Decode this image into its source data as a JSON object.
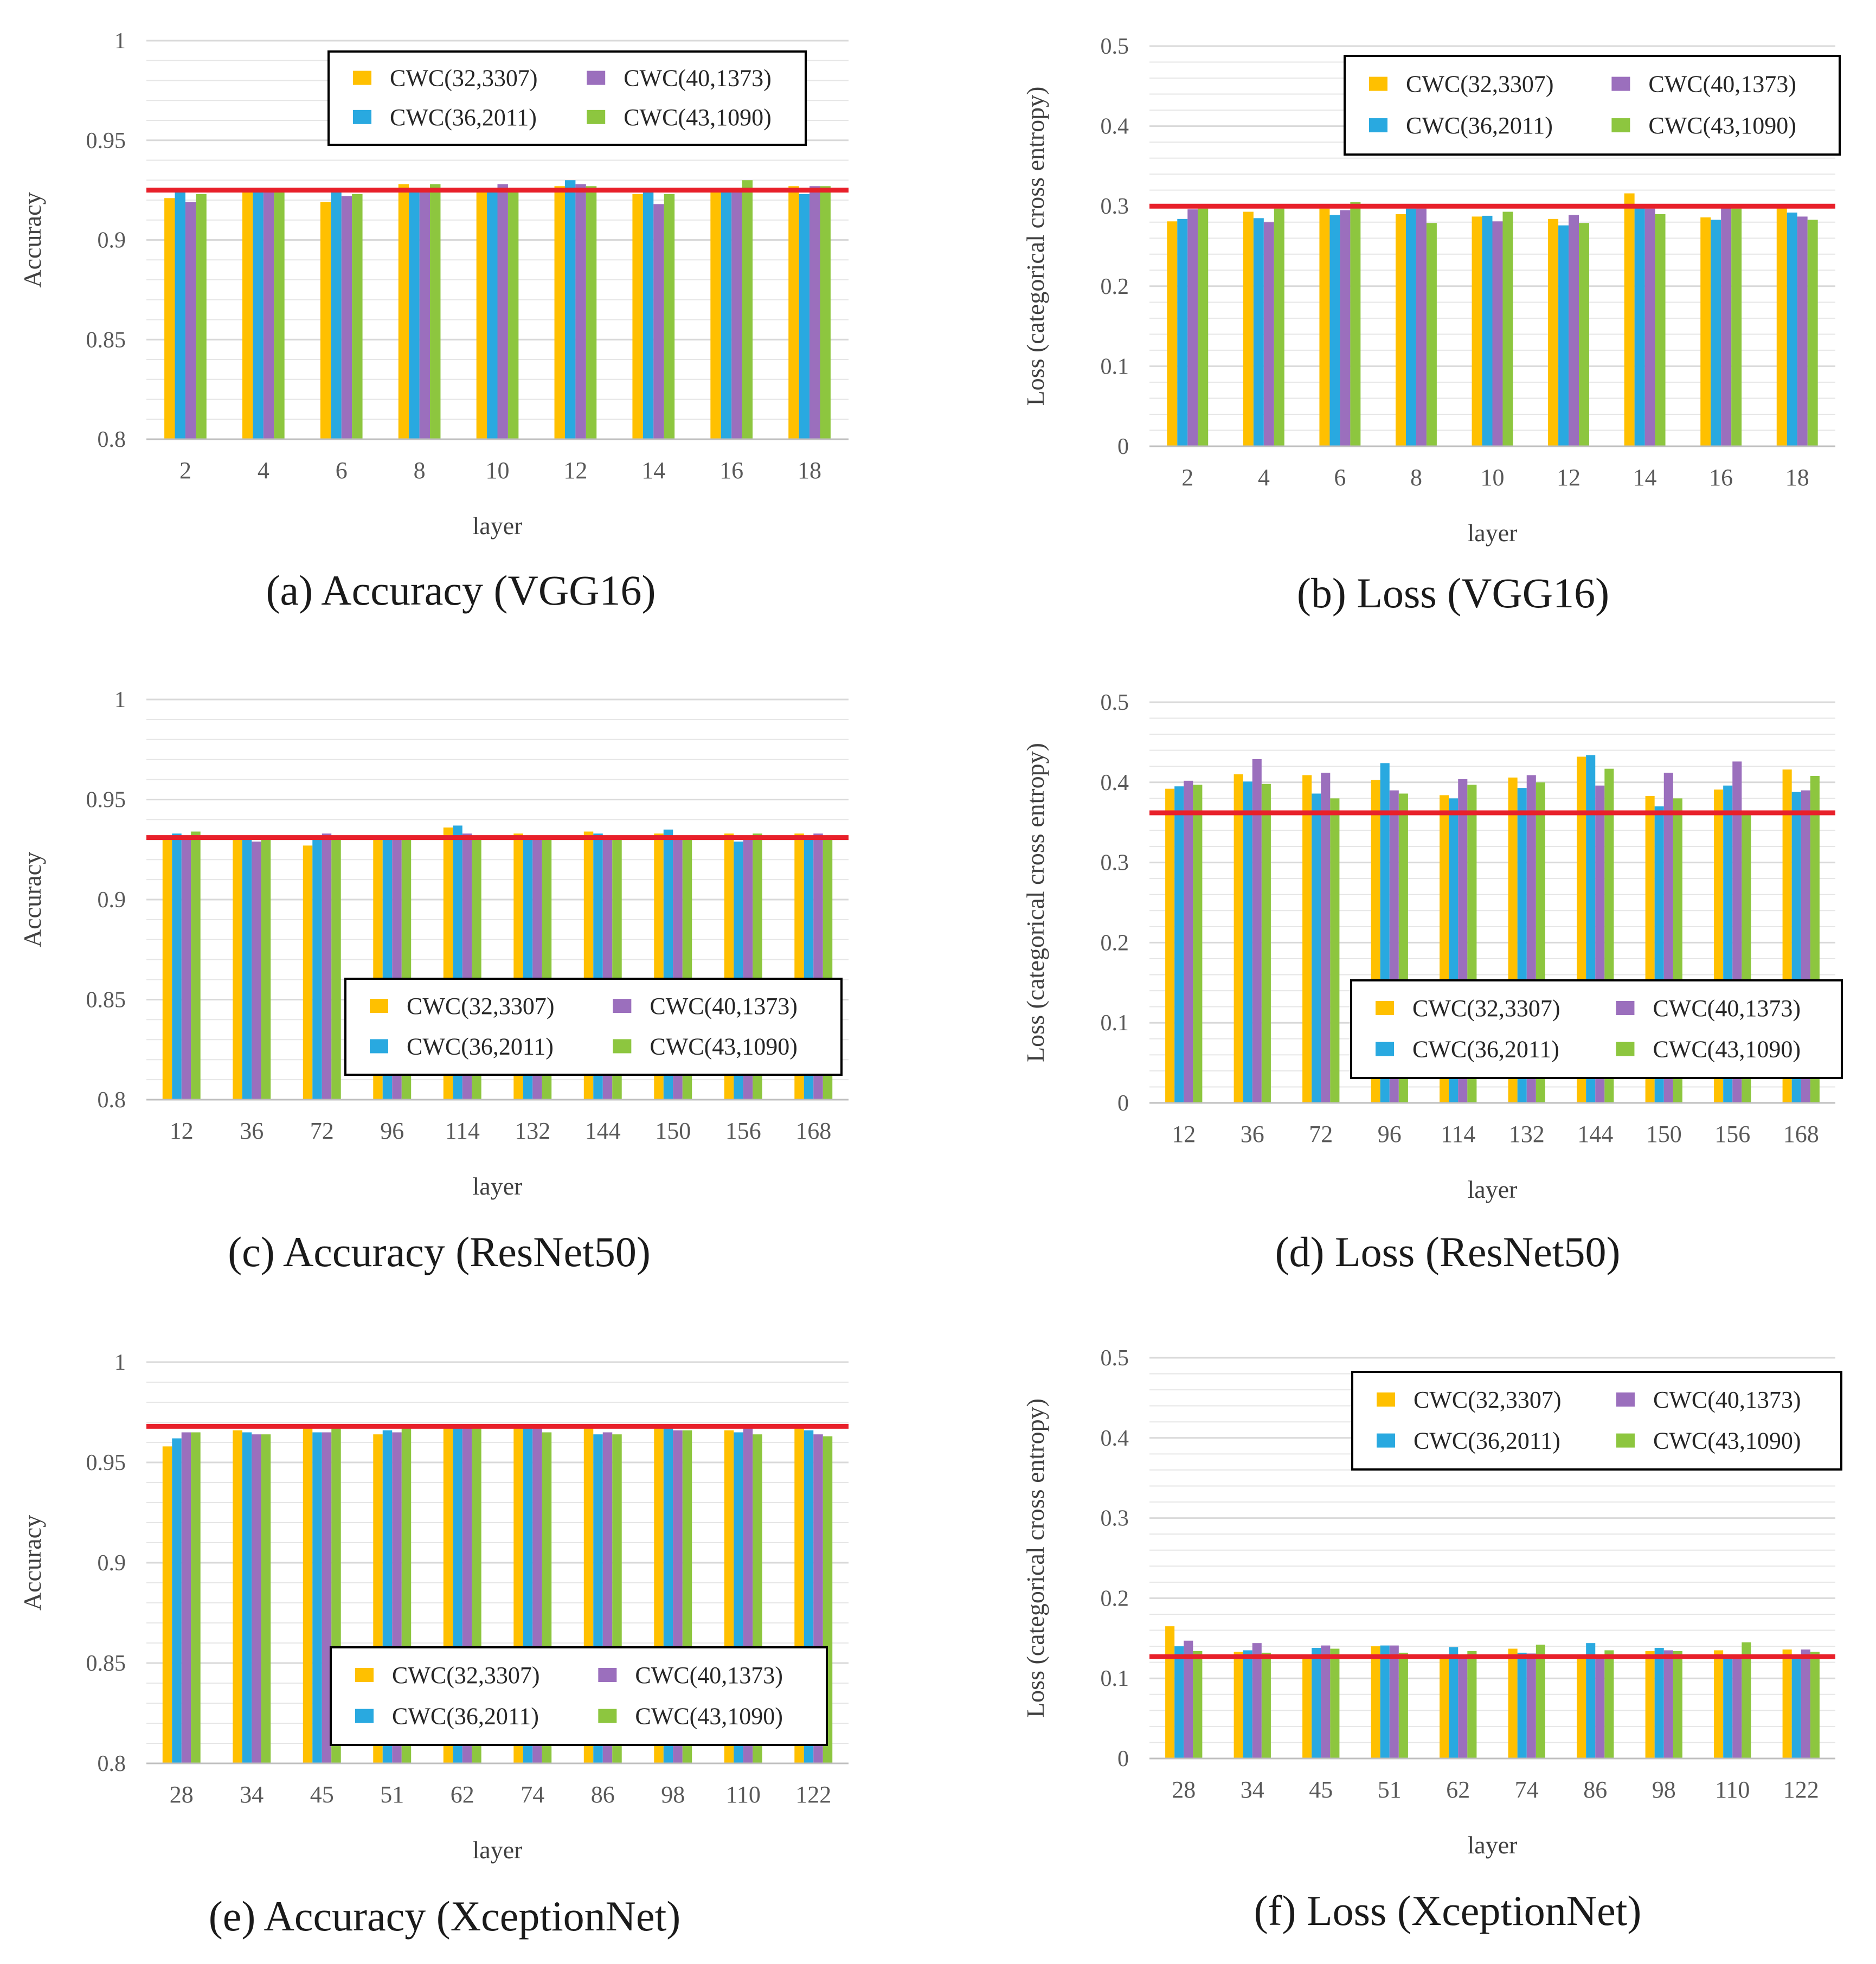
{
  "colors": {
    "series": [
      "#FFC000",
      "#29A9E0",
      "#9B6FBD",
      "#8DC63F"
    ],
    "baseline": "#E8202A",
    "grid": "#D9D9D9",
    "axis": "#BFBFBF",
    "text": "#595959",
    "legend_border": "#000000"
  },
  "legend_labels": [
    "CWC(32,3307)",
    "CWC(36,2011)",
    "CWC(40,1373)",
    "CWC(43,1090)"
  ],
  "chart_data": [
    {
      "type": "bar",
      "title": "",
      "caption": "(a) Accuracy (VGG16)",
      "xlabel": "layer",
      "ylabel": "Accuracy",
      "ylim": [
        0.8,
        1
      ],
      "yticks": [
        0.8,
        0.85,
        0.9,
        0.95,
        1
      ],
      "ytick_labels": [
        "0.8",
        "0.85",
        "0.9",
        "0.95",
        "1"
      ],
      "grid": true,
      "legend_position": "top-right",
      "categories": [
        "2",
        "4",
        "6",
        "8",
        "10",
        "12",
        "14",
        "16",
        "18"
      ],
      "series": [
        {
          "name": "CWC(32,3307)",
          "values": [
            0.921,
            0.924,
            0.919,
            0.928,
            0.924,
            0.927,
            0.923,
            0.924,
            0.927
          ]
        },
        {
          "name": "CWC(36,2011)",
          "values": [
            0.924,
            0.925,
            0.924,
            0.925,
            0.925,
            0.93,
            0.924,
            0.925,
            0.923
          ]
        },
        {
          "name": "CWC(40,1373)",
          "values": [
            0.919,
            0.925,
            0.922,
            0.925,
            0.928,
            0.928,
            0.918,
            0.925,
            0.927
          ]
        },
        {
          "name": "CWC(43,1090)",
          "values": [
            0.923,
            0.924,
            0.923,
            0.928,
            0.924,
            0.927,
            0.923,
            0.93,
            0.927
          ]
        }
      ],
      "baseline": 0.925
    },
    {
      "type": "bar",
      "title": "",
      "caption": "(b) Loss (VGG16)",
      "xlabel": "layer",
      "ylabel": "Loss (categorical cross entropy)",
      "ylim": [
        0,
        0.5
      ],
      "yticks": [
        0,
        0.1,
        0.2,
        0.3,
        0.4,
        0.5
      ],
      "ytick_labels": [
        "0",
        "0.1",
        "0.2",
        "0.3",
        "0.4",
        "0.5"
      ],
      "grid": true,
      "legend_position": "top-right",
      "categories": [
        "2",
        "4",
        "6",
        "8",
        "10",
        "12",
        "14",
        "16",
        "18"
      ],
      "series": [
        {
          "name": "CWC(32,3307)",
          "values": [
            0.281,
            0.293,
            0.297,
            0.29,
            0.287,
            0.284,
            0.316,
            0.286,
            0.298
          ]
        },
        {
          "name": "CWC(36,2011)",
          "values": [
            0.284,
            0.285,
            0.289,
            0.297,
            0.288,
            0.276,
            0.298,
            0.283,
            0.292
          ]
        },
        {
          "name": "CWC(40,1373)",
          "values": [
            0.296,
            0.28,
            0.295,
            0.297,
            0.281,
            0.289,
            0.297,
            0.298,
            0.287
          ]
        },
        {
          "name": "CWC(43,1090)",
          "values": [
            0.297,
            0.297,
            0.305,
            0.279,
            0.293,
            0.279,
            0.29,
            0.297,
            0.283
          ]
        }
      ],
      "baseline": 0.3
    },
    {
      "type": "bar",
      "title": "",
      "caption": "(c) Accuracy (ResNet50)",
      "xlabel": "layer",
      "ylabel": "Accuracy",
      "ylim": [
        0.8,
        1
      ],
      "yticks": [
        0.8,
        0.85,
        0.9,
        0.95,
        1
      ],
      "ytick_labels": [
        "0.8",
        "0.85",
        "0.9",
        "0.95",
        "1"
      ],
      "grid": true,
      "legend_position": "bottom-right",
      "categories": [
        "12",
        "36",
        "72",
        "96",
        "114",
        "132",
        "144",
        "150",
        "156",
        "168"
      ],
      "series": [
        {
          "name": "CWC(32,3307)",
          "values": [
            0.931,
            0.931,
            0.927,
            0.931,
            0.936,
            0.933,
            0.934,
            0.933,
            0.933,
            0.933
          ]
        },
        {
          "name": "CWC(36,2011)",
          "values": [
            0.933,
            0.931,
            0.931,
            0.932,
            0.937,
            0.931,
            0.933,
            0.935,
            0.929,
            0.932
          ]
        },
        {
          "name": "CWC(40,1373)",
          "values": [
            0.931,
            0.929,
            0.933,
            0.932,
            0.933,
            0.932,
            0.932,
            0.931,
            0.932,
            0.933
          ]
        },
        {
          "name": "CWC(43,1090)",
          "values": [
            0.934,
            0.931,
            0.931,
            0.932,
            0.932,
            0.932,
            0.932,
            0.931,
            0.933,
            0.931
          ]
        }
      ],
      "baseline": 0.931
    },
    {
      "type": "bar",
      "title": "",
      "caption": "(d) Loss (ResNet50)",
      "xlabel": "layer",
      "ylabel": "Loss (categorical cross entropy)",
      "ylim": [
        0,
        0.5
      ],
      "yticks": [
        0,
        0.1,
        0.2,
        0.3,
        0.4,
        0.5
      ],
      "ytick_labels": [
        "0",
        "0.1",
        "0.2",
        "0.3",
        "0.4",
        "0.5"
      ],
      "grid": true,
      "legend_position": "bottom-right",
      "categories": [
        "12",
        "36",
        "72",
        "96",
        "114",
        "132",
        "144",
        "150",
        "156",
        "168"
      ],
      "series": [
        {
          "name": "CWC(32,3307)",
          "values": [
            0.392,
            0.41,
            0.409,
            0.403,
            0.384,
            0.406,
            0.432,
            0.383,
            0.391,
            0.416
          ]
        },
        {
          "name": "CWC(36,2011)",
          "values": [
            0.395,
            0.401,
            0.386,
            0.424,
            0.38,
            0.393,
            0.434,
            0.37,
            0.396,
            0.388
          ]
        },
        {
          "name": "CWC(40,1373)",
          "values": [
            0.402,
            0.429,
            0.412,
            0.39,
            0.404,
            0.409,
            0.396,
            0.412,
            0.426,
            0.39
          ]
        },
        {
          "name": "CWC(43,1090)",
          "values": [
            0.397,
            0.398,
            0.38,
            0.386,
            0.397,
            0.4,
            0.417,
            0.38,
            0.36,
            0.408
          ]
        }
      ],
      "baseline": 0.362
    },
    {
      "type": "bar",
      "title": "",
      "caption": "(e) Accuracy (XceptionNet)",
      "xlabel": "layer",
      "ylabel": "Accuracy",
      "ylim": [
        0.8,
        1
      ],
      "yticks": [
        0.8,
        0.85,
        0.9,
        0.95,
        1
      ],
      "ytick_labels": [
        "0.8",
        "0.85",
        "0.9",
        "0.95",
        "1"
      ],
      "grid": true,
      "legend_position": "bottom-right",
      "categories": [
        "28",
        "34",
        "45",
        "51",
        "62",
        "74",
        "86",
        "98",
        "110",
        "122"
      ],
      "series": [
        {
          "name": "CWC(32,3307)",
          "values": [
            0.958,
            0.966,
            0.968,
            0.964,
            0.968,
            0.967,
            0.968,
            0.968,
            0.966,
            0.968
          ]
        },
        {
          "name": "CWC(36,2011)",
          "values": [
            0.962,
            0.965,
            0.965,
            0.966,
            0.967,
            0.968,
            0.964,
            0.967,
            0.965,
            0.966
          ]
        },
        {
          "name": "CWC(40,1373)",
          "values": [
            0.965,
            0.964,
            0.965,
            0.965,
            0.967,
            0.968,
            0.965,
            0.966,
            0.968,
            0.964
          ]
        },
        {
          "name": "CWC(43,1090)",
          "values": [
            0.965,
            0.964,
            0.968,
            0.968,
            0.967,
            0.965,
            0.964,
            0.966,
            0.964,
            0.963
          ]
        }
      ],
      "baseline": 0.968
    },
    {
      "type": "bar",
      "title": "",
      "caption": "(f) Loss (XceptionNet)",
      "xlabel": "layer",
      "ylabel": "Loss (categorical cross entropy)",
      "ylim": [
        0,
        0.5
      ],
      "yticks": [
        0,
        0.1,
        0.2,
        0.3,
        0.4,
        0.5
      ],
      "ytick_labels": [
        "0",
        "0.1",
        "0.2",
        "0.3",
        "0.4",
        "0.5"
      ],
      "grid": true,
      "legend_position": "top-right",
      "categories": [
        "28",
        "34",
        "45",
        "51",
        "62",
        "74",
        "86",
        "98",
        "110",
        "122"
      ],
      "series": [
        {
          "name": "CWC(32,3307)",
          "values": [
            0.165,
            0.133,
            0.129,
            0.14,
            0.128,
            0.137,
            0.13,
            0.134,
            0.135,
            0.136
          ]
        },
        {
          "name": "CWC(36,2011)",
          "values": [
            0.14,
            0.135,
            0.138,
            0.141,
            0.139,
            0.132,
            0.144,
            0.138,
            0.126,
            0.129
          ]
        },
        {
          "name": "CWC(40,1373)",
          "values": [
            0.147,
            0.144,
            0.141,
            0.141,
            0.127,
            0.131,
            0.127,
            0.135,
            0.126,
            0.136
          ]
        },
        {
          "name": "CWC(43,1090)",
          "values": [
            0.134,
            0.132,
            0.137,
            0.132,
            0.134,
            0.142,
            0.135,
            0.134,
            0.145,
            0.133
          ]
        }
      ],
      "baseline": 0.127
    }
  ]
}
